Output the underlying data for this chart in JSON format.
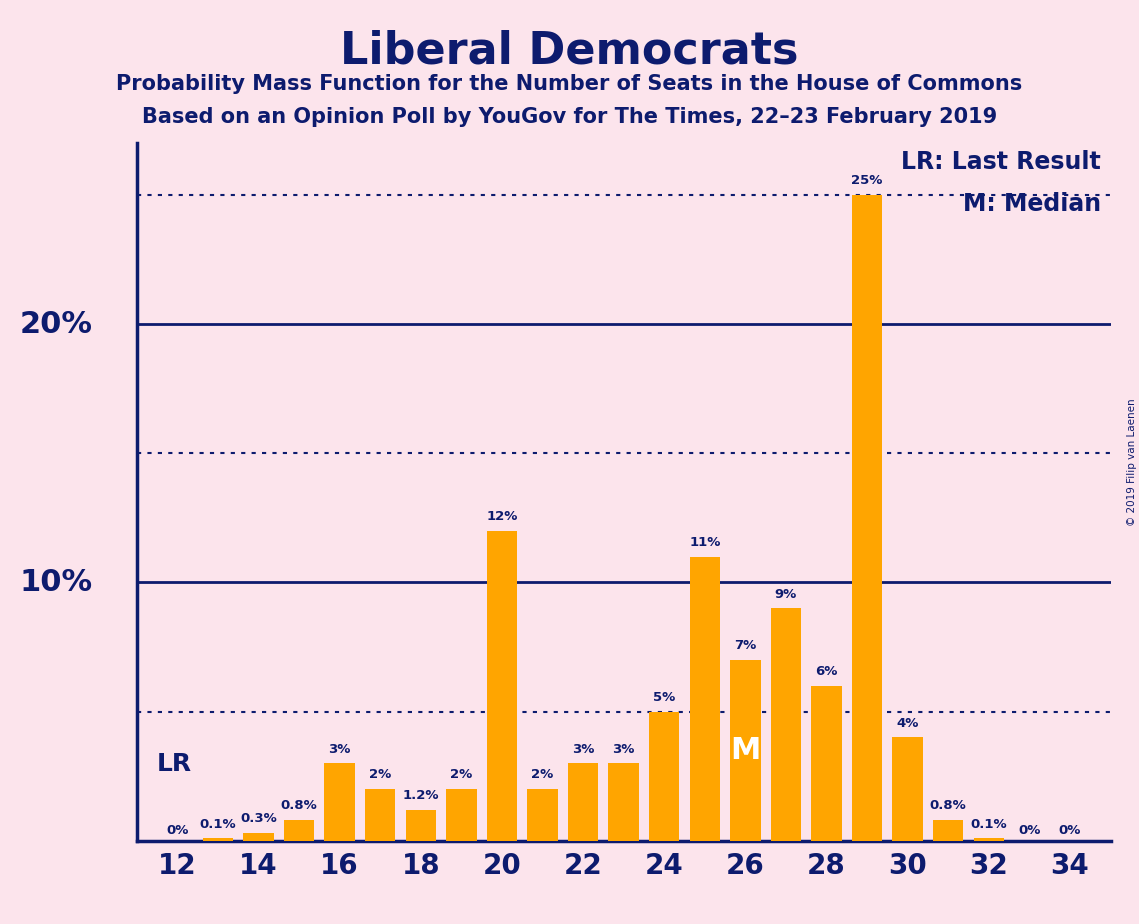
{
  "title": "Liberal Democrats",
  "subtitle1": "Probability Mass Function for the Number of Seats in the House of Commons",
  "subtitle2": "Based on an Opinion Poll by YouGov for The Times, 22–23 February 2019",
  "background_color": "#fce4ec",
  "bar_color": "#FFA500",
  "title_color": "#0d1b6e",
  "subtitle_color": "#0d1b6e",
  "axis_color": "#0d1b6e",
  "grid_color": "#0d1b6e",
  "categories": [
    12,
    13,
    14,
    15,
    16,
    17,
    18,
    19,
    20,
    21,
    22,
    23,
    24,
    25,
    26,
    27,
    28,
    29,
    30,
    31,
    32,
    33,
    34
  ],
  "values": [
    0,
    0.1,
    0.3,
    0.8,
    3,
    2,
    1.2,
    2,
    12,
    2,
    3,
    3,
    5,
    11,
    7,
    9,
    6,
    25,
    4,
    0.8,
    0.1,
    0,
    0
  ],
  "bar_labels": [
    "0%",
    "0.1%",
    "0.3%",
    "0.8%",
    "3%",
    "2%",
    "1.2%",
    "2%",
    "12%",
    "2%",
    "3%",
    "3%",
    "5%",
    "11%",
    "7%",
    "9%",
    "6%",
    "25%",
    "4%",
    "0.8%",
    "0.1%",
    "0%",
    "0%"
  ],
  "xtick_positions": [
    12,
    14,
    16,
    18,
    20,
    22,
    24,
    26,
    28,
    30,
    32,
    34
  ],
  "ylim": [
    0,
    27
  ],
  "solid_hlines": [
    10,
    20
  ],
  "dotted_hlines": [
    5,
    15,
    25
  ],
  "ytick_labels_solid": [
    [
      10,
      "10%"
    ],
    [
      20,
      "20%"
    ]
  ],
  "lr_seat": 12,
  "lr_label": "LR",
  "median_seat": 26,
  "median_label": "M",
  "legend_lr": "LR: Last Result",
  "legend_m": "M: Median",
  "copyright": "© 2019 Filip van Laenen",
  "label_fontsize": 9.5,
  "bar_label_color_normal": "#0d1b6e",
  "bar_label_color_white": "#ffffff",
  "title_fontsize": 32,
  "subtitle_fontsize": 15,
  "ytick_fontsize": 22,
  "xtick_fontsize": 20
}
